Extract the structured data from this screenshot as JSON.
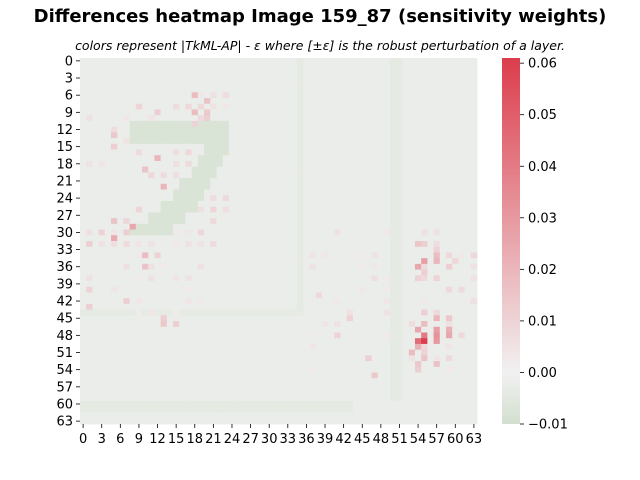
{
  "chart_data": {
    "type": "heatmap",
    "title": "Differences heatmap Image 159_87 (sensitivity weights)",
    "subtitle": "colors represent |TkML-AP| - ε where [±ε] is the robust perturbation of a layer.",
    "rows": 64,
    "cols": 64,
    "x_tick_labels": [
      "0",
      "3",
      "6",
      "9",
      "12",
      "15",
      "18",
      "21",
      "24",
      "27",
      "30",
      "33",
      "36",
      "39",
      "42",
      "45",
      "48",
      "51",
      "54",
      "57",
      "60",
      "63"
    ],
    "y_tick_labels": [
      "0",
      "3",
      "6",
      "9",
      "12",
      "15",
      "18",
      "21",
      "24",
      "27",
      "30",
      "33",
      "36",
      "39",
      "42",
      "45",
      "48",
      "51",
      "54",
      "57",
      "60",
      "63"
    ],
    "colorbar": {
      "min": -0.01,
      "max": 0.061,
      "tick_labels": [
        "−0.01",
        "0.00",
        "0.01",
        "0.02",
        "0.03",
        "0.04",
        "0.05",
        "0.06"
      ],
      "tick_values": [
        -0.01,
        0.0,
        0.01,
        0.02,
        0.03,
        0.04,
        0.05,
        0.06
      ],
      "low_color": "#d3dfcf",
      "mid_color": "#f1f1f1",
      "high_color": "#dc3d4c"
    },
    "background_value": -0.0025,
    "digit_stroke_value": -0.008,
    "faint_line_value": -0.004,
    "digit_segments": [
      {
        "r0": 11,
        "r1": 15,
        "c0": 8,
        "c1": 24
      },
      {
        "r0": 15,
        "r1": 17,
        "c0": 20,
        "c1": 24
      },
      {
        "r0": 17,
        "r1": 19,
        "c0": 19,
        "c1": 23
      },
      {
        "r0": 19,
        "r1": 21,
        "c0": 18,
        "c1": 22
      },
      {
        "r0": 21,
        "r1": 23,
        "c0": 16,
        "c1": 21
      },
      {
        "r0": 23,
        "r1": 25,
        "c0": 15,
        "c1": 20
      },
      {
        "r0": 25,
        "r1": 27,
        "c0": 13,
        "c1": 19
      },
      {
        "r0": 27,
        "r1": 29,
        "c0": 11,
        "c1": 17
      },
      {
        "r0": 29,
        "r1": 31,
        "c0": 8,
        "c1": 15
      }
    ],
    "faint_segments": [
      {
        "r0": 60,
        "r1": 62,
        "c0": 0,
        "c1": 44
      },
      {
        "r0": 44,
        "r1": 45,
        "c0": 0,
        "c1": 36
      },
      {
        "r0": 0,
        "r1": 60,
        "c0": 50,
        "c1": 52
      },
      {
        "r0": 0,
        "r1": 45,
        "c0": 35,
        "c1": 36
      }
    ],
    "hotspots": [
      {
        "r": 49,
        "c": 55,
        "v": 0.061
      },
      {
        "r": 49,
        "c": 54,
        "v": 0.045
      },
      {
        "r": 48,
        "c": 55,
        "v": 0.04
      },
      {
        "r": 49,
        "c": 57,
        "v": 0.03
      },
      {
        "r": 48,
        "c": 57,
        "v": 0.032
      },
      {
        "r": 47,
        "c": 57,
        "v": 0.028
      },
      {
        "r": 47,
        "c": 59,
        "v": 0.022
      },
      {
        "r": 48,
        "c": 59,
        "v": 0.025
      },
      {
        "r": 47,
        "c": 54,
        "v": 0.025
      },
      {
        "r": 50,
        "c": 54,
        "v": 0.022
      },
      {
        "r": 51,
        "c": 53,
        "v": 0.018
      },
      {
        "r": 52,
        "c": 55,
        "v": 0.015
      },
      {
        "r": 53,
        "c": 57,
        "v": 0.016
      },
      {
        "r": 45,
        "c": 57,
        "v": 0.02
      },
      {
        "r": 44,
        "c": 55,
        "v": 0.012
      },
      {
        "r": 46,
        "c": 55,
        "v": 0.018
      },
      {
        "r": 45,
        "c": 59,
        "v": 0.014
      },
      {
        "r": 53,
        "c": 54,
        "v": 0.014
      },
      {
        "r": 54,
        "c": 54,
        "v": 0.012
      },
      {
        "r": 51,
        "c": 55,
        "v": 0.01
      },
      {
        "r": 35,
        "c": 55,
        "v": 0.028
      },
      {
        "r": 36,
        "c": 54,
        "v": 0.025
      },
      {
        "r": 34,
        "c": 57,
        "v": 0.018
      },
      {
        "r": 35,
        "c": 57,
        "v": 0.02
      },
      {
        "r": 32,
        "c": 54,
        "v": 0.015
      },
      {
        "r": 32,
        "c": 55,
        "v": 0.012
      },
      {
        "r": 33,
        "c": 57,
        "v": 0.01
      },
      {
        "r": 37,
        "c": 55,
        "v": 0.012
      },
      {
        "r": 38,
        "c": 57,
        "v": 0.01
      },
      {
        "r": 36,
        "c": 59,
        "v": 0.012
      },
      {
        "r": 35,
        "c": 60,
        "v": 0.009
      },
      {
        "r": 38,
        "c": 54,
        "v": 0.01
      },
      {
        "r": 6,
        "c": 18,
        "v": 0.018
      },
      {
        "r": 7,
        "c": 20,
        "v": 0.016
      },
      {
        "r": 9,
        "c": 18,
        "v": 0.018
      },
      {
        "r": 10,
        "c": 20,
        "v": 0.012
      },
      {
        "r": 11,
        "c": 18,
        "v": 0.01
      },
      {
        "r": 9,
        "c": 20,
        "v": 0.014
      },
      {
        "r": 17,
        "c": 12,
        "v": 0.02
      },
      {
        "r": 19,
        "c": 10,
        "v": 0.016
      },
      {
        "r": 22,
        "c": 13,
        "v": 0.02
      },
      {
        "r": 29,
        "c": 8,
        "v": 0.025
      },
      {
        "r": 31,
        "c": 5,
        "v": 0.024
      },
      {
        "r": 28,
        "c": 5,
        "v": 0.016
      },
      {
        "r": 34,
        "c": 10,
        "v": 0.018
      },
      {
        "r": 36,
        "c": 10,
        "v": 0.016
      },
      {
        "r": 13,
        "c": 5,
        "v": 0.014
      },
      {
        "r": 15,
        "c": 5,
        "v": 0.012
      },
      {
        "r": 32,
        "c": 1,
        "v": 0.012
      },
      {
        "r": 40,
        "c": 1,
        "v": 0.01
      },
      {
        "r": 43,
        "c": 1,
        "v": 0.012
      },
      {
        "r": 46,
        "c": 13,
        "v": 0.014
      },
      {
        "r": 46,
        "c": 15,
        "v": 0.012
      },
      {
        "r": 45,
        "c": 13,
        "v": 0.012
      },
      {
        "r": 9,
        "c": 12,
        "v": 0.012
      },
      {
        "r": 34,
        "c": 12,
        "v": 0.01
      },
      {
        "r": 48,
        "c": 41,
        "v": 0.01
      },
      {
        "r": 52,
        "c": 46,
        "v": 0.012
      },
      {
        "r": 55,
        "c": 47,
        "v": 0.014
      },
      {
        "r": 45,
        "c": 43,
        "v": 0.01
      },
      {
        "r": 41,
        "c": 38,
        "v": 0.008
      }
    ],
    "scatter_regions": [
      {
        "r0": 8,
        "r1": 34,
        "c0": 0,
        "c1": 24,
        "level": 0.007
      },
      {
        "r0": 28,
        "r1": 44,
        "c0": 0,
        "c1": 8,
        "level": 0.008
      },
      {
        "r0": 30,
        "r1": 47,
        "c0": 8,
        "c1": 20,
        "level": 0.004
      },
      {
        "r0": 5,
        "r1": 12,
        "c0": 17,
        "c1": 24,
        "level": 0.006
      },
      {
        "r0": 30,
        "r1": 56,
        "c0": 36,
        "c1": 50,
        "level": 0.004
      },
      {
        "r0": 30,
        "r1": 56,
        "c0": 52,
        "c1": 64,
        "level": 0.006
      }
    ]
  }
}
